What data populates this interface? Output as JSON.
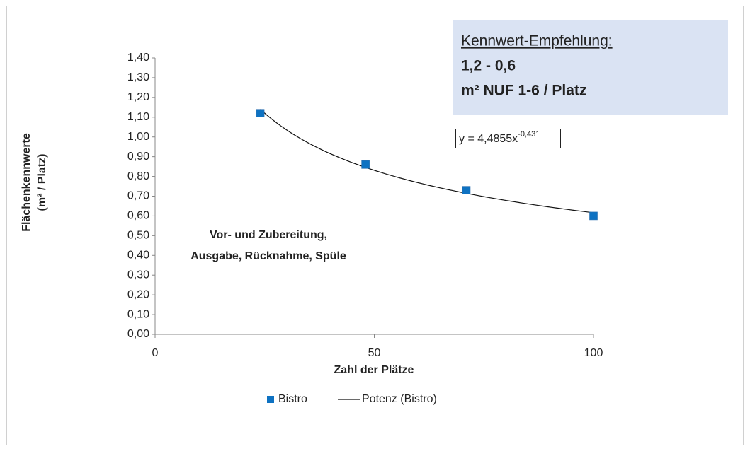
{
  "chart_data": {
    "type": "scatter",
    "x": [
      24,
      48,
      71,
      100
    ],
    "series": [
      {
        "name": "Bistro",
        "color": "#0e72c2",
        "values": [
          1.12,
          0.86,
          0.73,
          0.6
        ]
      }
    ],
    "trendline": {
      "name": "Potenz (Bistro)",
      "color": "#111111",
      "coefficient": 4.4855,
      "exponent": -0.431,
      "equation": "y = 4,4855x",
      "equation_exponent": "-0,431"
    },
    "xlim": [
      0,
      100
    ],
    "xticks": [
      0,
      50,
      100
    ],
    "ylim": [
      0,
      1.4
    ],
    "yticks": [
      {
        "value": 0,
        "label": "0,00"
      },
      {
        "value": 0.1,
        "label": "0,10"
      },
      {
        "value": 0.2,
        "label": "0,20"
      },
      {
        "value": 0.3,
        "label": "0,30"
      },
      {
        "value": 0.4,
        "label": "0,40"
      },
      {
        "value": 0.5,
        "label": "0,50"
      },
      {
        "value": 0.6,
        "label": "0,60"
      },
      {
        "value": 0.7,
        "label": "0,70"
      },
      {
        "value": 0.8,
        "label": "0,80"
      },
      {
        "value": 0.9,
        "label": "0,90"
      },
      {
        "value": 1.0,
        "label": "1,00"
      },
      {
        "value": 1.1,
        "label": "1,10"
      },
      {
        "value": 1.2,
        "label": "1,20"
      },
      {
        "value": 1.3,
        "label": "1,30"
      },
      {
        "value": 1.4,
        "label": "1,40"
      }
    ],
    "xlabel": "Zahl der Plätze",
    "ylabel": [
      "Flächenkennwerte",
      "(m² / Platz)"
    ],
    "recommendation": {
      "heading": "Kennwert-Empfehlung:",
      "range": "1,2 - 0,6",
      "unit": "m² NUF 1-6 / Platz"
    },
    "annotation": [
      "Vor- und Zubereitung,",
      "Ausgabe, Rücknahme, Spüle"
    ]
  }
}
